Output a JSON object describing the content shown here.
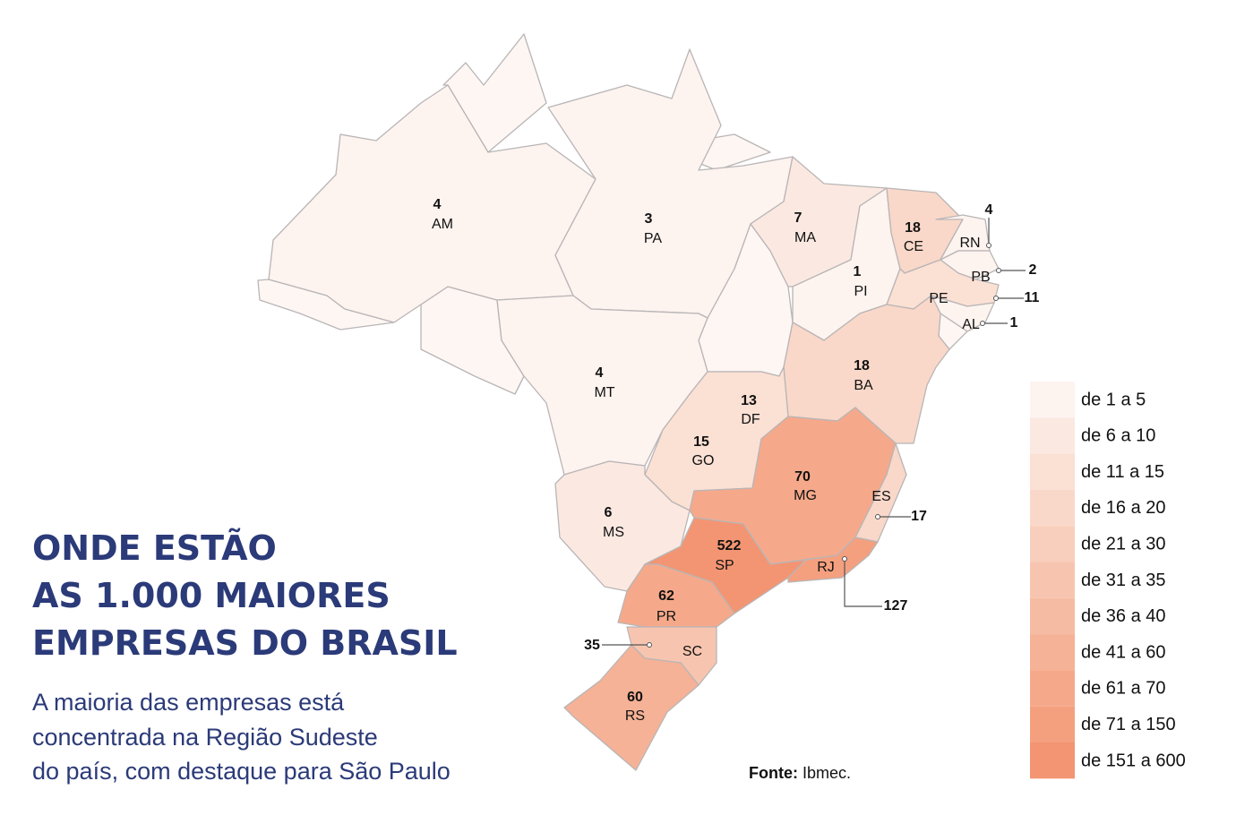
{
  "title": [
    "ONDE ESTÃO",
    "AS 1.000 MAIORES",
    "EMPRESAS DO BRASIL"
  ],
  "subtitle": [
    "A maioria das empresas está",
    "concentrada na Região Sudeste",
    "do país, com destaque para São Paulo"
  ],
  "source_label": "Fonte:",
  "source_text": "Ibmec.",
  "legend": [
    {
      "label": "de 1 a 5",
      "color": "#fdf3ef"
    },
    {
      "label": "de 6 a 10",
      "color": "#fbe9e1"
    },
    {
      "label": "de 11 a 15",
      "color": "#fbe0d4"
    },
    {
      "label": "de 16 a 20",
      "color": "#f9d8c9"
    },
    {
      "label": "de 21 a 30",
      "color": "#f8cfbc"
    },
    {
      "label": "de 31 a 35",
      "color": "#f7c5af"
    },
    {
      "label": "de 36 a 40",
      "color": "#f6bca3"
    },
    {
      "label": "de 41 a 60",
      "color": "#f5b296"
    },
    {
      "label": "de 61 a 70",
      "color": "#f5a98a"
    },
    {
      "label": "de 71 a 150",
      "color": "#f4a07f"
    },
    {
      "label": "de 151 a 600",
      "color": "#f39572"
    }
  ],
  "states": [
    {
      "abbr": "AM",
      "value": 4,
      "color": "#fdf3ef"
    },
    {
      "abbr": "PA",
      "value": 3,
      "color": "#fdf3ef"
    },
    {
      "abbr": "MA",
      "value": 7,
      "color": "#fbe9e1"
    },
    {
      "abbr": "PI",
      "value": 1,
      "color": "#fdf3ef"
    },
    {
      "abbr": "CE",
      "value": 18,
      "color": "#f9d8c9"
    },
    {
      "abbr": "RN",
      "value": 4,
      "color": "#fdf3ef"
    },
    {
      "abbr": "PB",
      "value": 2,
      "color": "#fdf3ef"
    },
    {
      "abbr": "PE",
      "value": 11,
      "color": "#fbe0d4"
    },
    {
      "abbr": "AL",
      "value": 1,
      "color": "#fdf3ef"
    },
    {
      "abbr": "BA",
      "value": 18,
      "color": "#f9d8c9"
    },
    {
      "abbr": "MT",
      "value": 4,
      "color": "#fdf3ef"
    },
    {
      "abbr": "DF",
      "value": 13,
      "color": "#fbe0d4"
    },
    {
      "abbr": "GO",
      "value": 15,
      "color": "#fbe0d4"
    },
    {
      "abbr": "MG",
      "value": 70,
      "color": "#f5a98a"
    },
    {
      "abbr": "ES",
      "value": 17,
      "color": "#f9d8c9"
    },
    {
      "abbr": "MS",
      "value": 6,
      "color": "#fbe9e1"
    },
    {
      "abbr": "SP",
      "value": 522,
      "color": "#f39572"
    },
    {
      "abbr": "RJ",
      "value": 127,
      "color": "#f4a07f"
    },
    {
      "abbr": "PR",
      "value": 62,
      "color": "#f5a98a"
    },
    {
      "abbr": "SC",
      "value": 35,
      "color": "#f7c5af"
    },
    {
      "abbr": "RS",
      "value": 60,
      "color": "#f5b296"
    }
  ]
}
